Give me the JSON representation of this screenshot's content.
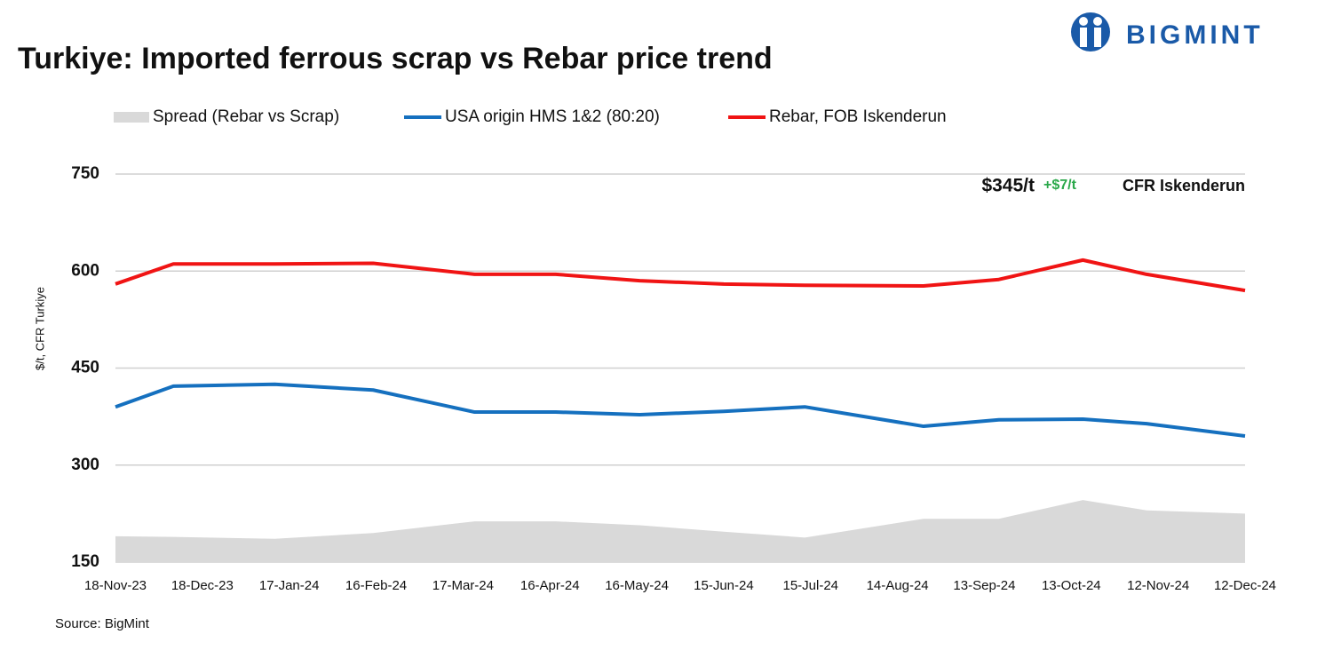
{
  "brand": "BIGMINT",
  "chart_data": {
    "type": "line",
    "title": "Turkiye: Imported ferrous scrap vs Rebar price trend",
    "y_label": "$/t, CFR Turkiye",
    "source": "Source: BigMint",
    "annotations": [
      "$345/t",
      "+$7/t",
      "CFR Iskenderun"
    ],
    "x": [
      "2023-11-18",
      "2023-12-08",
      "2024-01-12",
      "2024-02-15",
      "2024-03-21",
      "2024-04-18",
      "2024-05-17",
      "2024-06-15",
      "2024-07-13",
      "2024-08-23",
      "2024-09-18",
      "2024-10-17",
      "2024-11-08",
      "2024-12-12"
    ],
    "xlim": [
      "2023-11-18",
      "2024-12-12"
    ],
    "xticks": [
      {
        "value": "2023-11-18",
        "label": "18-Nov-23"
      },
      {
        "value": "2023-12-18",
        "label": "18-Dec-23"
      },
      {
        "value": "2024-01-17",
        "label": "17-Jan-24"
      },
      {
        "value": "2024-02-16",
        "label": "16-Feb-24"
      },
      {
        "value": "2024-03-17",
        "label": "17-Mar-24"
      },
      {
        "value": "2024-04-16",
        "label": "16-Apr-24"
      },
      {
        "value": "2024-05-16",
        "label": "16-May-24"
      },
      {
        "value": "2024-06-15",
        "label": "15-Jun-24"
      },
      {
        "value": "2024-07-15",
        "label": "15-Jul-24"
      },
      {
        "value": "2024-08-14",
        "label": "14-Aug-24"
      },
      {
        "value": "2024-09-13",
        "label": "13-Sep-24"
      },
      {
        "value": "2024-10-13",
        "label": "13-Oct-24"
      },
      {
        "value": "2024-11-12",
        "label": "12-Nov-24"
      },
      {
        "value": "2024-12-12",
        "label": "12-Dec-24"
      }
    ],
    "ylim": [
      150,
      750
    ],
    "yticks": [
      150,
      300,
      450,
      600,
      750
    ],
    "grid": true,
    "series": [
      {
        "name": "Spread (Rebar vs Scrap)",
        "kind": "area",
        "color": "#d9d9d9",
        "values": [
          190,
          189,
          186,
          195,
          213,
          213,
          207,
          197,
          188,
          217,
          217,
          246,
          230,
          225
        ]
      },
      {
        "name": "USA origin HMS 1&2 (80:20)",
        "kind": "line",
        "color": "#1570bf",
        "values": [
          390,
          422,
          425,
          416,
          382,
          382,
          378,
          383,
          390,
          360,
          370,
          371,
          364,
          345
        ]
      },
      {
        "name": "Rebar, FOB Iskenderun",
        "kind": "line",
        "color": "#f01414",
        "values": [
          580,
          611,
          611,
          612,
          595,
          595,
          585,
          580,
          578,
          577,
          587,
          617,
          595,
          570
        ]
      }
    ]
  }
}
